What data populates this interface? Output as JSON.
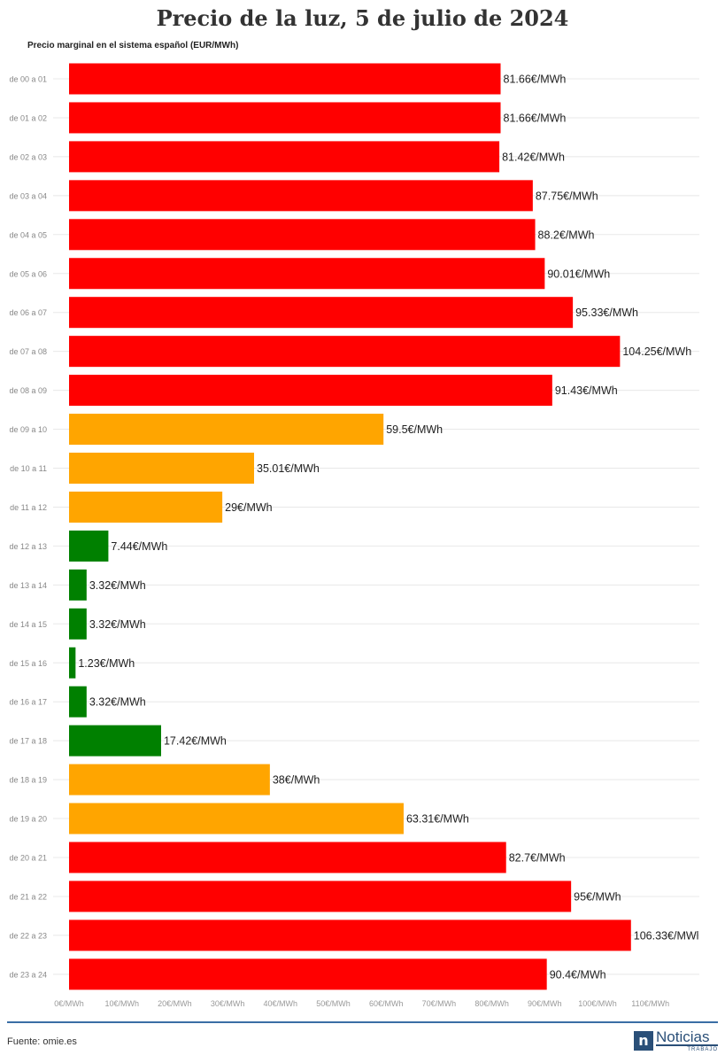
{
  "chart_data": {
    "type": "bar",
    "orientation": "horizontal",
    "title": "Precio de la luz, 5 de julio de 2024",
    "subtitle": "Precio marginal en el sistema español (EUR/MWh)",
    "categories": [
      "de 00 a 01",
      "de 01 a 02",
      "de 02 a 03",
      "de 03 a 04",
      "de 04 a 05",
      "de 05 a 06",
      "de 06 a 07",
      "de 07 a 08",
      "de 08 a 09",
      "de 09 a 10",
      "de 10 a 11",
      "de 11 a 12",
      "de 12 a 13",
      "de 13 a 14",
      "de 14 a 15",
      "de 15 a 16",
      "de 16 a 17",
      "de 17 a 18",
      "de 18 a 19",
      "de 19 a 20",
      "de 20 a 21",
      "de 21 a 22",
      "de 22 a 23",
      "de 23 a 24"
    ],
    "values": [
      81.66,
      81.66,
      81.42,
      87.75,
      88.2,
      90.01,
      95.33,
      104.25,
      91.43,
      59.5,
      35.01,
      29,
      7.44,
      3.32,
      3.32,
      1.23,
      3.32,
      17.42,
      38,
      63.31,
      82.7,
      95,
      106.33,
      90.4
    ],
    "value_labels": [
      "81.66€/MWh",
      "81.66€/MWh",
      "81.42€/MWh",
      "87.75€/MWh",
      "88.2€/MWh",
      "90.01€/MWh",
      "95.33€/MWh",
      "104.25€/MWh",
      "91.43€/MWh",
      "59.5€/MWh",
      "35.01€/MWh",
      "29€/MWh",
      "7.44€/MWh",
      "3.32€/MWh",
      "3.32€/MWh",
      "1.23€/MWh",
      "3.32€/MWh",
      "17.42€/MWh",
      "38€/MWh",
      "63.31€/MWh",
      "82.7€/MWh",
      "95€/MWh",
      "106.33€/MWl",
      "90.4€/MWh"
    ],
    "bar_colors": [
      "#ff0000",
      "#ff0000",
      "#ff0000",
      "#ff0000",
      "#ff0000",
      "#ff0000",
      "#ff0000",
      "#ff0000",
      "#ff0000",
      "#ffa500",
      "#ffa500",
      "#ffa500",
      "#008000",
      "#008000",
      "#008000",
      "#008000",
      "#008000",
      "#008000",
      "#ffa500",
      "#ffa500",
      "#ff0000",
      "#ff0000",
      "#ff0000",
      "#ff0000"
    ],
    "xticks": [
      0,
      10,
      20,
      30,
      40,
      50,
      60,
      70,
      80,
      90,
      100,
      110
    ],
    "xtick_labels": [
      "0€/MWh",
      "10€/MWh",
      "20€/MWh",
      "30€/MWh",
      "40€/MWh",
      "50€/MWh",
      "60€/MWh",
      "70€/MWh",
      "80€/MWh",
      "90€/MWh",
      "100€/MWh",
      "110€/MWh"
    ],
    "xlim": [
      0,
      110
    ],
    "grid": true,
    "legend": "none"
  },
  "footer": {
    "source": "Fuente: omie.es",
    "brand_mark": "n",
    "brand_name": "Noticias",
    "brand_sub": "TRABAJO"
  }
}
